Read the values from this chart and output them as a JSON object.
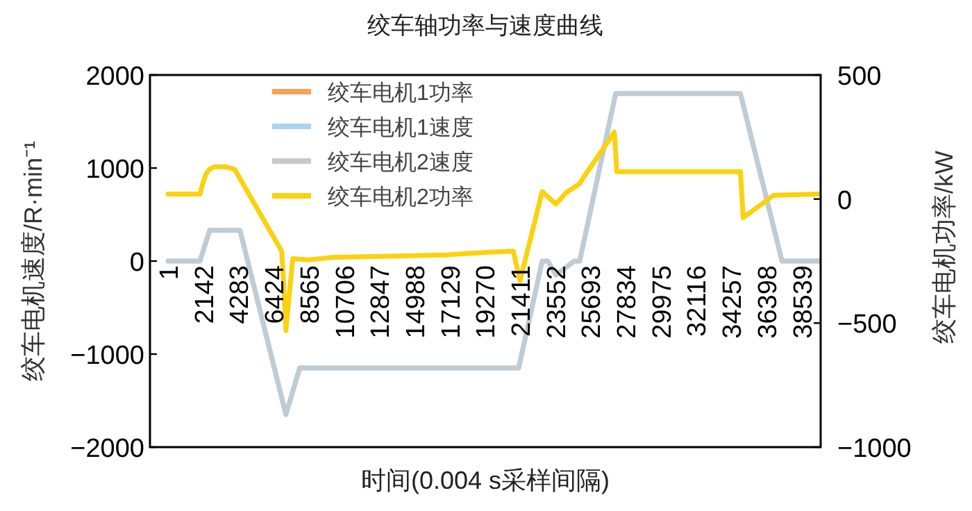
{
  "chart_data": {
    "type": "line",
    "title": "绞车轴功率与速度曲线",
    "xlabel": "时间(0.004 s采样间隔)",
    "ylabel": "绞车电机速度/R·min⁻¹",
    "y2label": "绞车电机功率/kW",
    "xlim": [
      -1100,
      39700
    ],
    "xticks": [
      1,
      2142,
      4283,
      6424,
      8565,
      10706,
      12847,
      14988,
      17129,
      19270,
      21411,
      23552,
      25693,
      27834,
      29975,
      32116,
      34257,
      36398,
      38539
    ],
    "ylim": [
      -2000,
      2000
    ],
    "yticks": [
      -2000,
      -1000,
      0,
      1000,
      2000
    ],
    "y2lim": [
      -1000,
      500
    ],
    "y2ticks": [
      -1000,
      -500,
      0,
      500
    ],
    "legend": "top left",
    "series": [
      {
        "name": "绞车电机1功率",
        "axis": "y2",
        "color": "#f5a35c"
      },
      {
        "name": "绞车电机1速度",
        "color": "#a6d4f2",
        "x": [
          1,
          1940,
          2530,
          4380,
          7170,
          8010,
          21330,
          22760,
          23100,
          23600,
          24200,
          24700,
          25040,
          27230,
          34820,
          37350,
          39600
        ],
        "values": [
          0,
          0,
          330,
          330,
          -1650,
          -1150,
          -1150,
          0,
          0,
          -150,
          -70,
          0,
          0,
          1800,
          1800,
          0,
          0
        ]
      },
      {
        "name": "绞车电机2速度",
        "color": "#c8c8c8",
        "x": [
          1,
          1940,
          2530,
          4380,
          7170,
          8010,
          21330,
          22760,
          23100,
          23600,
          24200,
          24700,
          25040,
          27230,
          34820,
          37350,
          39600
        ],
        "values": [
          0,
          0,
          330,
          330,
          -1650,
          -1150,
          -1150,
          0,
          0,
          -150,
          -70,
          0,
          0,
          1800,
          1800,
          0,
          0
        ]
      },
      {
        "name": "绞车电机2功率",
        "axis": "y2",
        "color": "#fad20f",
        "x": [
          1,
          1940,
          2100,
          2300,
          2530,
          2800,
          3500,
          4050,
          6910,
          7000,
          7170,
          7350,
          7590,
          8565,
          10000,
          14000,
          17000,
          19270,
          21000,
          21411,
          22760,
          23600,
          24200,
          25000,
          27150,
          27300,
          34820,
          34990,
          36840,
          39600
        ],
        "values": [
          20,
          20,
          60,
          100,
          120,
          130,
          130,
          120,
          -210,
          -300,
          -530,
          -400,
          -240,
          -245,
          -235,
          -230,
          -225,
          -215,
          -210,
          -330,
          30,
          -20,
          25,
          60,
          270,
          110,
          110,
          -75,
          15,
          20
        ]
      }
    ]
  }
}
